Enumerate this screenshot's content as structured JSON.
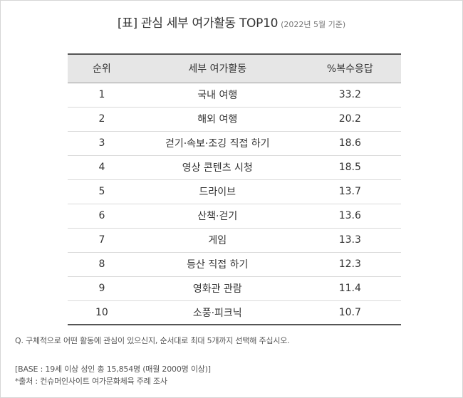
{
  "title": {
    "main": "[표] 관심 세부 여가활동 TOP10",
    "sub": "(2022년 5월 기준)"
  },
  "table": {
    "headers": [
      "순위",
      "세부 여가활동",
      "%복수응답"
    ],
    "rows": [
      {
        "rank": "1",
        "activity": "국내 여행",
        "pct": "33.2"
      },
      {
        "rank": "2",
        "activity": "해외 여행",
        "pct": "20.2"
      },
      {
        "rank": "3",
        "activity": "걷기·속보·조깅 직접 하기",
        "pct": "18.6"
      },
      {
        "rank": "4",
        "activity": "영상 콘텐츠 시청",
        "pct": "18.5"
      },
      {
        "rank": "5",
        "activity": "드라이브",
        "pct": "13.7"
      },
      {
        "rank": "6",
        "activity": "산책·걷기",
        "pct": "13.6"
      },
      {
        "rank": "7",
        "activity": "게임",
        "pct": "13.3"
      },
      {
        "rank": "8",
        "activity": "등산 직접 하기",
        "pct": "12.3"
      },
      {
        "rank": "9",
        "activity": "영화관 관람",
        "pct": "11.4"
      },
      {
        "rank": "10",
        "activity": "소풍·피크닉",
        "pct": "10.7"
      }
    ]
  },
  "notes": {
    "question": "Q. 구체적으로 어떤 활동에 관심이 있으신지, 순서대로 최대 5개까지 선택해 주십시오.",
    "base": "[BASE : 19세 이상 성인 총 15,854명 (매월 2000명 이상)]",
    "source": "*출처 : 컨슈머인사이트 여가문화체육 주례 조사"
  }
}
